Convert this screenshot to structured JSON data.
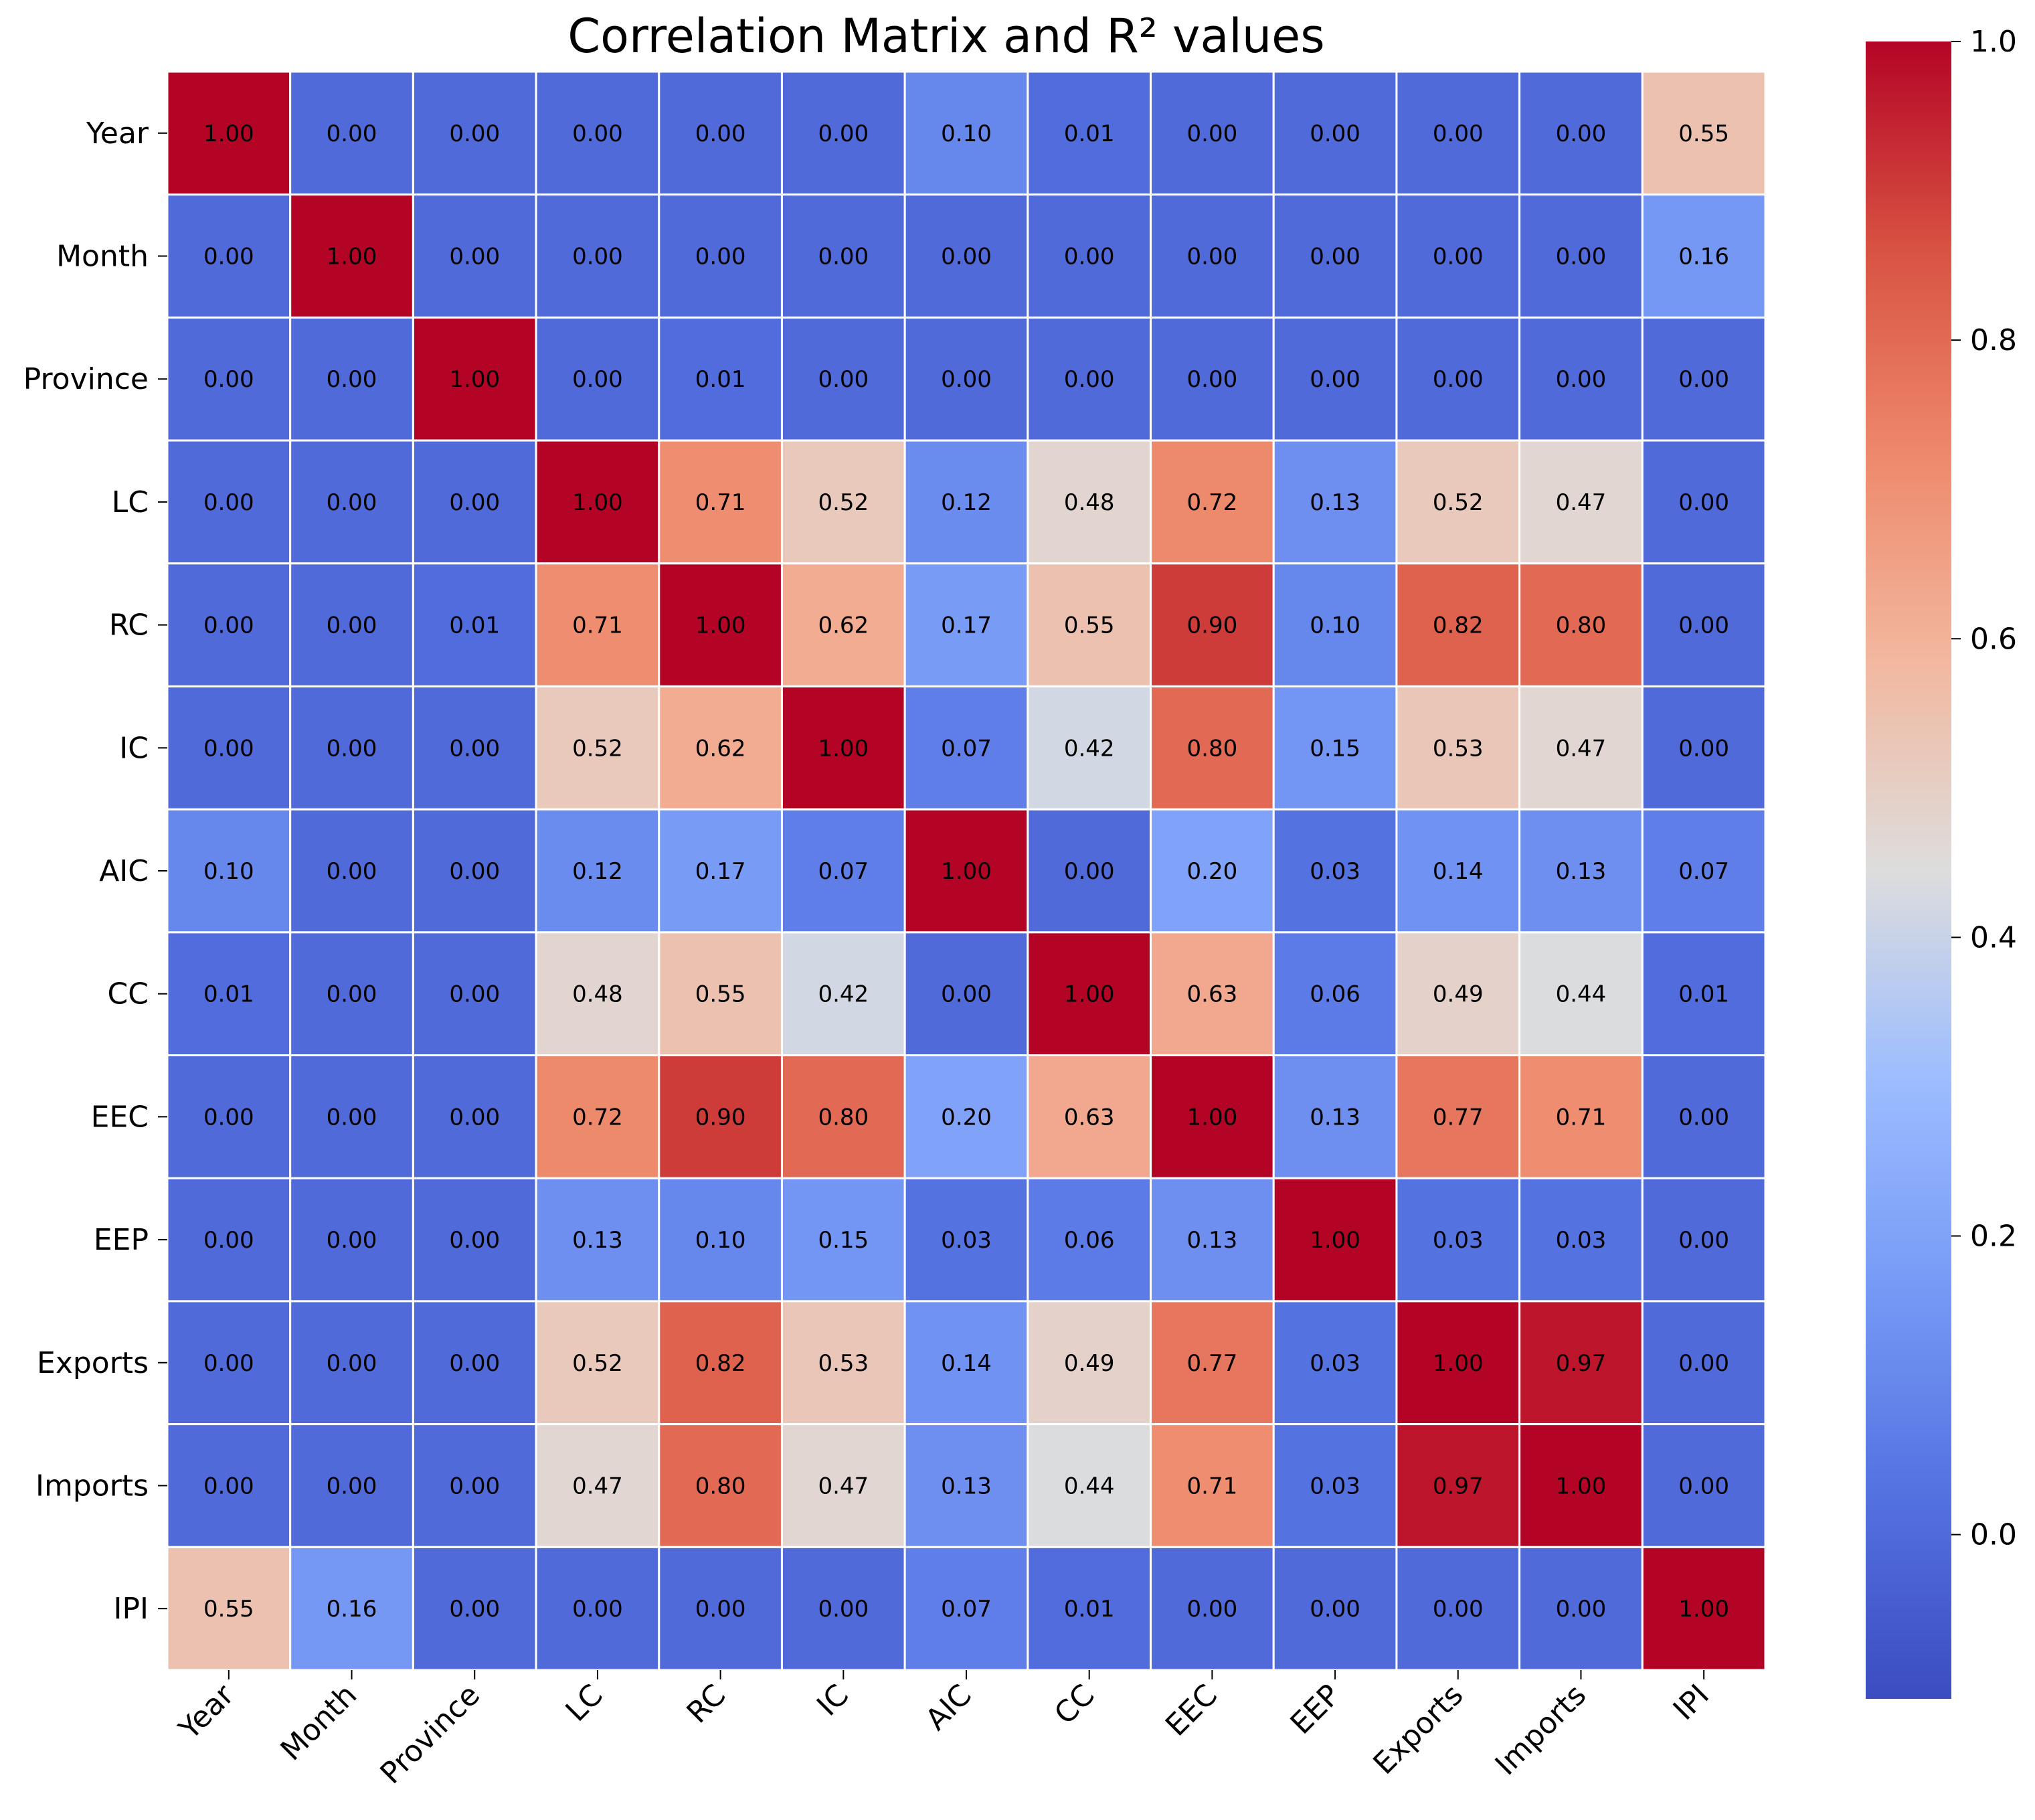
{
  "chart_data": {
    "type": "heatmap",
    "title": "Correlation Matrix and  R² values",
    "xlabel": "",
    "ylabel": "",
    "labels": [
      "Year",
      "Month",
      "Province",
      "LC",
      "RC",
      "IC",
      "AIC",
      "CC",
      "EEC",
      "EEP",
      "Exports",
      "Imports",
      "IPI"
    ],
    "values": [
      [
        1.0,
        0.0,
        0.0,
        0.0,
        0.0,
        0.0,
        0.1,
        0.01,
        0.0,
        0.0,
        0.0,
        0.0,
        0.55
      ],
      [
        0.0,
        1.0,
        0.0,
        0.0,
        0.0,
        0.0,
        0.0,
        0.0,
        0.0,
        0.0,
        0.0,
        0.0,
        0.16
      ],
      [
        0.0,
        0.0,
        1.0,
        0.0,
        0.01,
        0.0,
        0.0,
        0.0,
        0.0,
        0.0,
        0.0,
        0.0,
        0.0
      ],
      [
        0.0,
        0.0,
        0.0,
        1.0,
        0.71,
        0.52,
        0.12,
        0.48,
        0.72,
        0.13,
        0.52,
        0.47,
        0.0
      ],
      [
        0.0,
        0.0,
        0.01,
        0.71,
        1.0,
        0.62,
        0.17,
        0.55,
        0.9,
        0.1,
        0.82,
        0.8,
        0.0
      ],
      [
        0.0,
        0.0,
        0.0,
        0.52,
        0.62,
        1.0,
        0.07,
        0.42,
        0.8,
        0.15,
        0.53,
        0.47,
        0.0
      ],
      [
        0.1,
        0.0,
        0.0,
        0.12,
        0.17,
        0.07,
        1.0,
        0.0,
        0.2,
        0.03,
        0.14,
        0.13,
        0.07
      ],
      [
        0.01,
        0.0,
        0.0,
        0.48,
        0.55,
        0.42,
        0.0,
        1.0,
        0.63,
        0.06,
        0.49,
        0.44,
        0.01
      ],
      [
        0.0,
        0.0,
        0.0,
        0.72,
        0.9,
        0.8,
        0.2,
        0.63,
        1.0,
        0.13,
        0.77,
        0.71,
        0.0
      ],
      [
        0.0,
        0.0,
        0.0,
        0.13,
        0.1,
        0.15,
        0.03,
        0.06,
        0.13,
        1.0,
        0.03,
        0.03,
        0.0
      ],
      [
        0.0,
        0.0,
        0.0,
        0.52,
        0.82,
        0.53,
        0.14,
        0.49,
        0.77,
        0.03,
        1.0,
        0.97,
        0.0
      ],
      [
        0.0,
        0.0,
        0.0,
        0.47,
        0.8,
        0.47,
        0.13,
        0.44,
        0.71,
        0.03,
        0.97,
        1.0,
        0.0
      ],
      [
        0.55,
        0.16,
        0.0,
        0.0,
        0.0,
        0.0,
        0.07,
        0.01,
        0.0,
        0.0,
        0.0,
        0.0,
        1.0
      ]
    ],
    "colormap": "coolwarm",
    "colorbar": {
      "range": [
        -0.11,
        1.0
      ],
      "ticks": [
        0.0,
        0.2,
        0.4,
        0.6,
        0.8,
        1.0
      ],
      "tick_labels": [
        "0.0",
        "0.2",
        "0.4",
        "0.6",
        "0.8",
        "1.0"
      ]
    },
    "grid": true,
    "annotate": true
  },
  "colors": {
    "background": "#ffffff",
    "cell_border": "#ffffff",
    "text": "#000000"
  }
}
